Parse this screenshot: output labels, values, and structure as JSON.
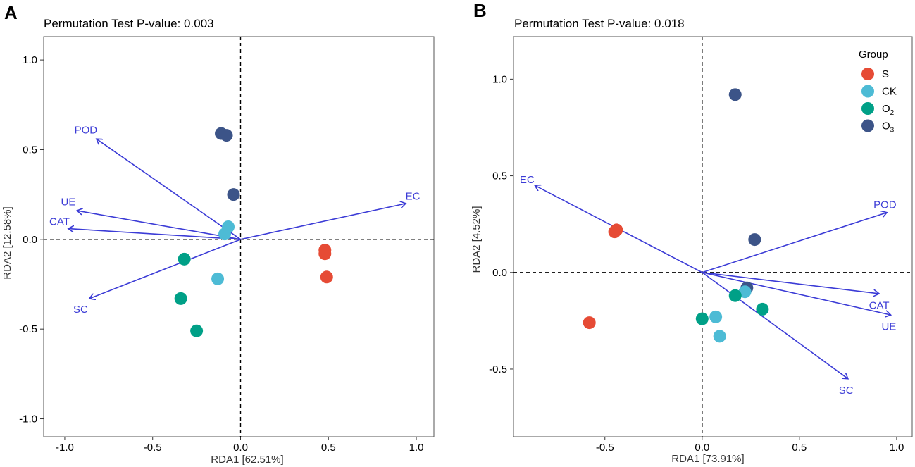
{
  "figure": {
    "colors": {
      "S": "#E64B35",
      "CK": "#4DBBD5",
      "O2": "#00A087",
      "O3": "#3C5488",
      "arrow": "#3B3BD6"
    },
    "legend": {
      "title": "Group",
      "items": [
        {
          "key": "S",
          "label": "S",
          "sub": ""
        },
        {
          "key": "CK",
          "label": "CK",
          "sub": ""
        },
        {
          "key": "O2",
          "label": "O",
          "sub": "2"
        },
        {
          "key": "O3",
          "label": "O",
          "sub": "3"
        }
      ]
    }
  },
  "chart_data": [
    {
      "type": "scatter",
      "panel_label": "A",
      "title": "Permutation Test P-value: 0.003",
      "xlabel": "RDA1 [62.51%]",
      "ylabel": "RDA2 [12.58%]",
      "xlim": [
        -1.12,
        1.1
      ],
      "ylim": [
        -1.1,
        1.13
      ],
      "xticks": [
        -1.0,
        -0.5,
        0.0,
        0.5,
        1.0
      ],
      "xtick_labels": [
        "-1.0",
        "-0.5",
        "0.0",
        "0.5",
        "1.0"
      ],
      "yticks": [
        -1.0,
        -0.5,
        0.0,
        0.5,
        1.0
      ],
      "ytick_labels": [
        "-1.0",
        "-0.5",
        "0.0",
        "0.5",
        "1.0"
      ],
      "points": [
        {
          "group": "O3",
          "x": -0.11,
          "y": 0.59
        },
        {
          "group": "O3",
          "x": -0.08,
          "y": 0.58
        },
        {
          "group": "O3",
          "x": -0.04,
          "y": 0.25
        },
        {
          "group": "CK",
          "x": -0.07,
          "y": 0.07
        },
        {
          "group": "CK",
          "x": -0.09,
          "y": 0.03
        },
        {
          "group": "CK",
          "x": -0.13,
          "y": -0.22
        },
        {
          "group": "O2",
          "x": -0.32,
          "y": -0.11
        },
        {
          "group": "O2",
          "x": -0.34,
          "y": -0.33
        },
        {
          "group": "O2",
          "x": -0.25,
          "y": -0.51
        },
        {
          "group": "S",
          "x": 0.48,
          "y": -0.06
        },
        {
          "group": "S",
          "x": 0.48,
          "y": -0.08
        },
        {
          "group": "S",
          "x": 0.49,
          "y": -0.21
        }
      ],
      "vectors": [
        {
          "label": "POD",
          "x": -0.82,
          "y": 0.56,
          "lx": -0.88,
          "ly": 0.61
        },
        {
          "label": "UE",
          "x": -0.93,
          "y": 0.16,
          "lx": -0.98,
          "ly": 0.21
        },
        {
          "label": "CAT",
          "x": -0.98,
          "y": 0.06,
          "lx": -1.03,
          "ly": 0.1
        },
        {
          "label": "SC",
          "x": -0.86,
          "y": -0.33,
          "lx": -0.91,
          "ly": -0.39
        },
        {
          "label": "EC",
          "x": 0.94,
          "y": 0.2,
          "lx": 0.98,
          "ly": 0.24
        }
      ]
    },
    {
      "type": "scatter",
      "panel_label": "B",
      "title": "Permutation Test P-value: 0.018",
      "xlabel": "RDA1 [73.91%]",
      "ylabel": "RDA2 [4.52%]",
      "xlim": [
        -0.97,
        1.08
      ],
      "ylim": [
        -0.85,
        1.22
      ],
      "xticks": [
        -0.5,
        0.0,
        0.5,
        1.0
      ],
      "xtick_labels": [
        "-0.5",
        "0.0",
        "0.5",
        "1.0"
      ],
      "yticks": [
        -0.5,
        0.0,
        0.5,
        1.0
      ],
      "ytick_labels": [
        "-0.5",
        "0.0",
        "0.5",
        "1.0"
      ],
      "points": [
        {
          "group": "O3",
          "x": 0.17,
          "y": 0.92
        },
        {
          "group": "O3",
          "x": 0.27,
          "y": 0.17
        },
        {
          "group": "O3",
          "x": 0.23,
          "y": -0.08
        },
        {
          "group": "S",
          "x": -0.44,
          "y": 0.22
        },
        {
          "group": "S",
          "x": -0.45,
          "y": 0.21
        },
        {
          "group": "S",
          "x": -0.58,
          "y": -0.26
        },
        {
          "group": "CK",
          "x": 0.22,
          "y": -0.1
        },
        {
          "group": "CK",
          "x": 0.07,
          "y": -0.23
        },
        {
          "group": "CK",
          "x": 0.09,
          "y": -0.33
        },
        {
          "group": "O2",
          "x": 0.17,
          "y": -0.12
        },
        {
          "group": "O2",
          "x": 0.31,
          "y": -0.19
        },
        {
          "group": "O2",
          "x": 0.0,
          "y": -0.24
        }
      ],
      "vectors": [
        {
          "label": "EC",
          "x": -0.86,
          "y": 0.45,
          "lx": -0.9,
          "ly": 0.48
        },
        {
          "label": "POD",
          "x": 0.95,
          "y": 0.31,
          "lx": 0.94,
          "ly": 0.35
        },
        {
          "label": "CAT",
          "x": 0.91,
          "y": -0.11,
          "lx": 0.91,
          "ly": -0.17
        },
        {
          "label": "UE",
          "x": 0.97,
          "y": -0.22,
          "lx": 0.96,
          "ly": -0.28
        },
        {
          "label": "SC",
          "x": 0.75,
          "y": -0.55,
          "lx": 0.74,
          "ly": -0.61
        }
      ]
    }
  ]
}
